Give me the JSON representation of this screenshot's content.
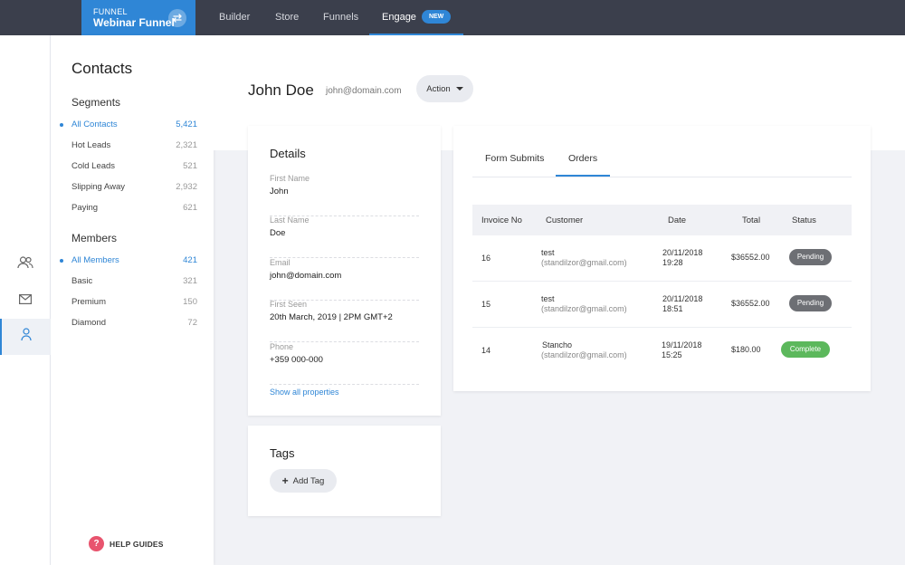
{
  "topbar": {
    "funnel_label": "FUNNEL",
    "funnel_name": "Webinar Funnel",
    "nav": [
      "Builder",
      "Store",
      "Funnels",
      "Engage"
    ],
    "badge": "NEW",
    "accent": "#2f86d6",
    "bg": "#3b3f4c"
  },
  "sidebar": {
    "title": "Contacts",
    "segments_heading": "Segments",
    "segments": [
      {
        "label": "All Contacts",
        "count": "5,421"
      },
      {
        "label": "Hot Leads",
        "count": "2,321"
      },
      {
        "label": "Cold Leads",
        "count": "521"
      },
      {
        "label": "Slipping Away",
        "count": "2,932"
      },
      {
        "label": "Paying",
        "count": "621"
      }
    ],
    "members_heading": "Members",
    "members": [
      {
        "label": "All Members",
        "count": "421"
      },
      {
        "label": "Basic",
        "count": "321"
      },
      {
        "label": "Premium",
        "count": "150"
      },
      {
        "label": "Diamond",
        "count": "72"
      }
    ],
    "help": "HELP GUIDES",
    "help_icon": "?"
  },
  "contact": {
    "name": "John Doe",
    "email": "john@domain.com",
    "action": "Action"
  },
  "details": {
    "title": "Details",
    "fields": [
      {
        "label": "First Name",
        "value": "John"
      },
      {
        "label": "Last Name",
        "value": "Doe"
      },
      {
        "label": "Email",
        "value": "john@domain.com"
      },
      {
        "label": "First Seen",
        "value": "20th March, 2019 | 2PM GMT+2"
      },
      {
        "label": "Phone",
        "value": "+359 000-000"
      }
    ],
    "show_all": "Show all properties"
  },
  "tags": {
    "title": "Tags",
    "add": "Add Tag"
  },
  "orders": {
    "tabs": [
      "Form Submits",
      "Orders"
    ],
    "headers": [
      "Invoice No",
      "Customer",
      "Date",
      "Total",
      "Status"
    ],
    "rows": [
      {
        "invoice": "16",
        "customer": "test",
        "customer_email": "(standilzor@gmail.com)",
        "date": "20/11/2018",
        "time": "19:28",
        "total": "$36552.00",
        "status": "Pending"
      },
      {
        "invoice": "15",
        "customer": "test",
        "customer_email": "(standilzor@gmail.com)",
        "date": "20/11/2018",
        "time": "18:51",
        "total": "$36552.00",
        "status": "Pending"
      },
      {
        "invoice": "14",
        "customer": "Stancho",
        "customer_email": "(standilzor@gmail.com)",
        "date": "19/11/2018",
        "time": "15:25",
        "total": "$180.00",
        "status": "Complete"
      }
    ],
    "status_colors": {
      "Pending": "#6d6f74",
      "Complete": "#5cb85c"
    }
  }
}
